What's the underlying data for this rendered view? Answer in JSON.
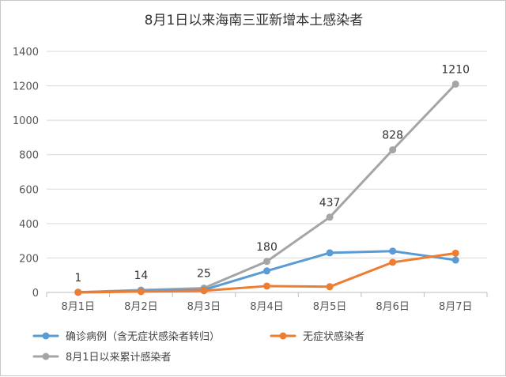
{
  "chart_data": {
    "type": "line",
    "title": "8月1日以来海南三亚新增本土感染者",
    "xlabel": "",
    "ylabel": "",
    "categories": [
      "8月1日",
      "8月2日",
      "8月3日",
      "8月4日",
      "8月5日",
      "8月6日",
      "8月7日"
    ],
    "ylim": [
      0,
      1400
    ],
    "yticks": [
      0,
      200,
      400,
      600,
      800,
      1000,
      1200,
      1400
    ],
    "grid": true,
    "legend_position": "bottom",
    "series": [
      {
        "name": "确诊病例（含无症状感染者转归）",
        "color": "#5b9bd5",
        "values": [
          1,
          9,
          15,
          125,
          230,
          240,
          188
        ]
      },
      {
        "name": "无症状感染者",
        "color": "#ed7d31",
        "values": [
          0,
          5,
          10,
          37,
          33,
          175,
          228
        ]
      },
      {
        "name": "8月1日以来累计感染者",
        "color": "#a5a5a5",
        "values": [
          1,
          14,
          25,
          180,
          437,
          828,
          1210
        ],
        "data_labels": [
          "1",
          "14",
          "25",
          "180",
          "437",
          "828",
          "1210"
        ]
      }
    ]
  }
}
